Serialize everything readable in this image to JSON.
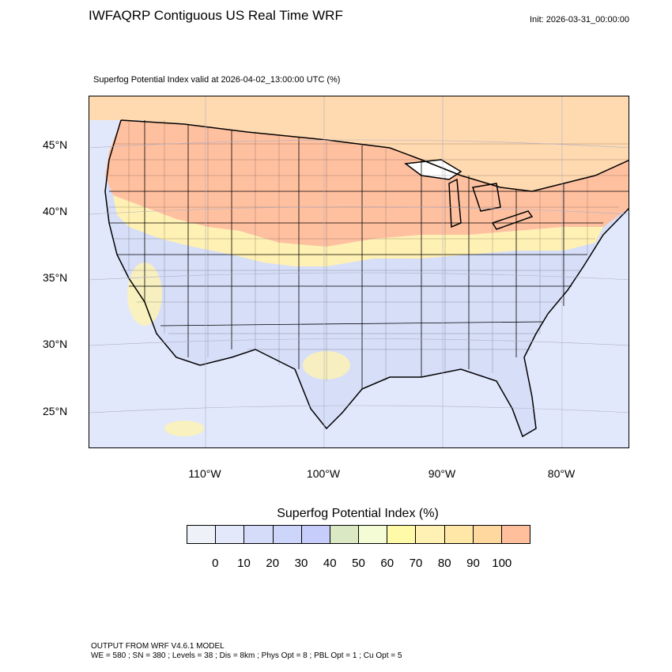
{
  "title": "IWFAQRP Contiguous US Real Time WRF",
  "init": "Init: 2026-03-31_00:00:00",
  "subtitle": "Superfog Potential Index valid at 2026-04-02_13:00:00 UTC   (%)",
  "map": {
    "lat_labels": [
      "45°N",
      "40°N",
      "35°N",
      "30°N",
      "25°N"
    ],
    "lon_labels": [
      "110°W",
      "100°W",
      "90°W",
      "80°W"
    ],
    "colors": {
      "ocean": "#e2e8fb",
      "low": "#d6def8",
      "mid": "#fff3b0",
      "high": "#ffc0a0",
      "boundary": "#000000"
    }
  },
  "colorbar": {
    "title": "Superfog Potential Index  (%)",
    "colors": [
      "#eef1f7",
      "#e3e8fb",
      "#d5dcf9",
      "#cdd5fb",
      "#c6cdfb",
      "#dbe8c4",
      "#f4fcd6",
      "#fffaa8",
      "#fff0b3",
      "#ffe7a8",
      "#ffd8a0",
      "#ffbf9d"
    ],
    "ticks": [
      "0",
      "10",
      "20",
      "30",
      "40",
      "50",
      "60",
      "70",
      "80",
      "90",
      "100"
    ]
  },
  "footer": {
    "line1": "OUTPUT FROM WRF V4.6.1 MODEL",
    "line2": "WE = 580 ; SN = 380 ; Levels = 38 ; Dis = 8km ; Phys Opt = 8 ; PBL Opt = 1 ; Cu Opt = 5"
  }
}
